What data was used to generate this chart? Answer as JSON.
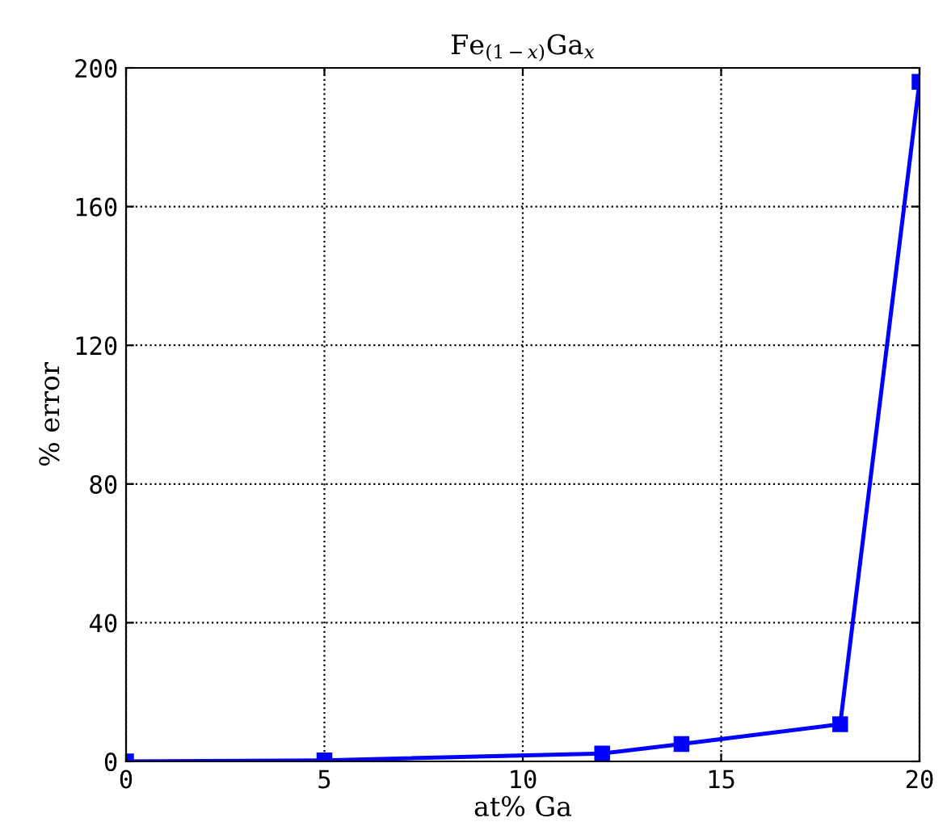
{
  "chart_data": {
    "type": "line",
    "title": "Fe$_{(1−x)}$Ga$_{x}$",
    "xlabel": "at% Ga",
    "ylabel": "% error",
    "x": [
      0,
      5,
      12,
      14,
      18,
      20
    ],
    "series": [
      {
        "color": "#0000ff",
        "values": [
          0,
          0.3,
          2.3,
          5,
          10.7,
          196
        ]
      }
    ],
    "xlim": [
      0,
      20
    ],
    "xticks": [
      0,
      5,
      10,
      15,
      20
    ],
    "ylim": [
      0,
      200
    ],
    "yticks": [
      0,
      40,
      80,
      120,
      160,
      200
    ],
    "grid": true,
    "marker": "square",
    "line_style": "solid"
  }
}
